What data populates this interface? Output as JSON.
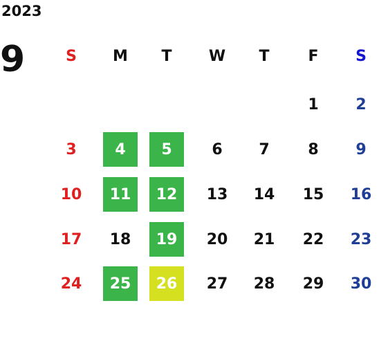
{
  "header": {
    "year": "2023",
    "month": "9"
  },
  "weekdays": [
    "S",
    "M",
    "T",
    "W",
    "T",
    "F",
    "S"
  ],
  "header_colors": [
    "#e02020",
    "#111111",
    "#111111",
    "#111111",
    "#111111",
    "#111111",
    "#1414d2"
  ],
  "day_colors": [
    "#e02020",
    "#111111",
    "#111111",
    "#111111",
    "#111111",
    "#111111",
    "#1f3f96"
  ],
  "weeks": [
    [
      null,
      null,
      null,
      null,
      null,
      {
        "text": "1"
      },
      {
        "text": "2"
      }
    ],
    [
      {
        "text": "3"
      },
      {
        "text": "4",
        "bg": "#3bb54a"
      },
      {
        "text": "5",
        "bg": "#3bb54a"
      },
      {
        "text": "6"
      },
      {
        "text": "7"
      },
      {
        "text": "8"
      },
      {
        "text": "9"
      }
    ],
    [
      {
        "text": "10"
      },
      {
        "text": "11",
        "bg": "#3bb54a"
      },
      {
        "text": "12",
        "bg": "#3bb54a"
      },
      {
        "text": "13"
      },
      {
        "text": "14"
      },
      {
        "text": "15"
      },
      {
        "text": "16"
      }
    ],
    [
      {
        "text": "17"
      },
      {
        "text": "18"
      },
      {
        "text": "19",
        "bg": "#3bb54a"
      },
      {
        "text": "20"
      },
      {
        "text": "21"
      },
      {
        "text": "22"
      },
      {
        "text": "23"
      }
    ],
    [
      {
        "text": "24"
      },
      {
        "text": "25",
        "bg": "#3bb54a"
      },
      {
        "text": "26",
        "bg": "#d5e021"
      },
      {
        "text": "27"
      },
      {
        "text": "28"
      },
      {
        "text": "29"
      },
      {
        "text": "30"
      }
    ]
  ]
}
